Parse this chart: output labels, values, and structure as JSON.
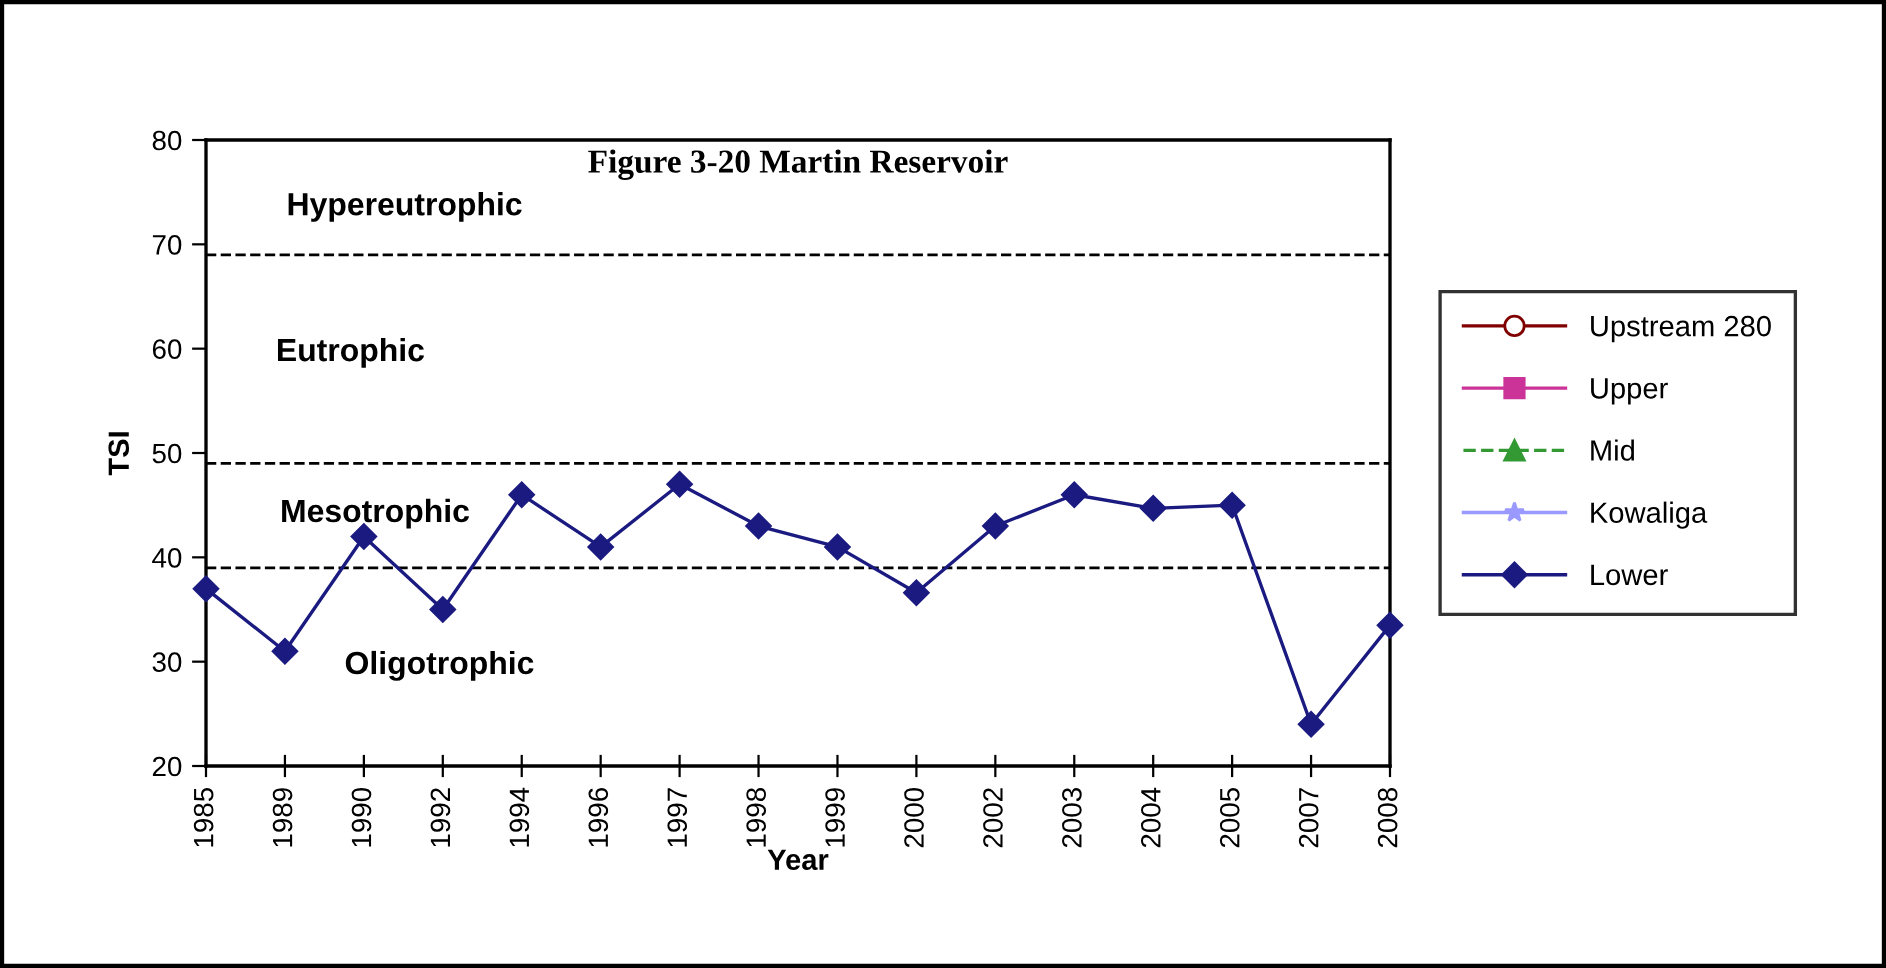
{
  "chart_data": {
    "type": "line",
    "title": "Figure 3-20 Martin Reservoir",
    "xlabel": "Year",
    "ylabel": "TSI",
    "categories": [
      "1985",
      "1989",
      "1990",
      "1992",
      "1994",
      "1996",
      "1997",
      "1998",
      "1999",
      "2000",
      "2002",
      "2003",
      "2004",
      "2005",
      "2007",
      "2008"
    ],
    "series": [
      {
        "name": "Upstream 280",
        "color": "#800000",
        "marker": "circle",
        "line_style": "solid",
        "values": [
          null,
          null,
          null,
          null,
          null,
          null,
          null,
          null,
          null,
          null,
          null,
          null,
          null,
          null,
          null,
          null
        ]
      },
      {
        "name": "Upper",
        "color": "#cc3399",
        "marker": "square",
        "line_style": "solid",
        "values": [
          null,
          null,
          null,
          null,
          null,
          null,
          null,
          null,
          null,
          null,
          null,
          null,
          null,
          null,
          null,
          null
        ]
      },
      {
        "name": "Mid",
        "color": "#339933",
        "marker": "triangle",
        "line_style": "dashed",
        "values": [
          null,
          null,
          null,
          null,
          null,
          null,
          null,
          null,
          null,
          null,
          null,
          null,
          null,
          null,
          null,
          null
        ]
      },
      {
        "name": "Kowaliga",
        "color": "#9999ff",
        "marker": "star",
        "line_style": "solid",
        "values": [
          null,
          null,
          null,
          null,
          null,
          null,
          null,
          null,
          null,
          null,
          null,
          null,
          null,
          null,
          null,
          null
        ]
      },
      {
        "name": "Lower",
        "color": "#1a1a80",
        "marker": "diamond",
        "line_style": "solid",
        "values": [
          37,
          31,
          42,
          35,
          46,
          41,
          47,
          43,
          41,
          36.6,
          43,
          46,
          44.7,
          45,
          24,
          33.5
        ]
      }
    ],
    "ylim": [
      20,
      80
    ],
    "yticks": [
      20,
      30,
      40,
      50,
      60,
      70,
      80
    ],
    "ref_lines": [
      {
        "axis": "y",
        "value": 69,
        "line_style": "dashed",
        "color": "#000000"
      },
      {
        "axis": "y",
        "value": 49,
        "line_style": "dashed",
        "color": "#000000"
      },
      {
        "axis": "y",
        "value": 39,
        "line_style": "dashed",
        "color": "#000000"
      }
    ],
    "annotations": [
      "Hypereutrophic",
      "Eutrophic",
      "Mesotrophic",
      "Oligotrophic"
    ],
    "legend": "right",
    "grid": false
  }
}
